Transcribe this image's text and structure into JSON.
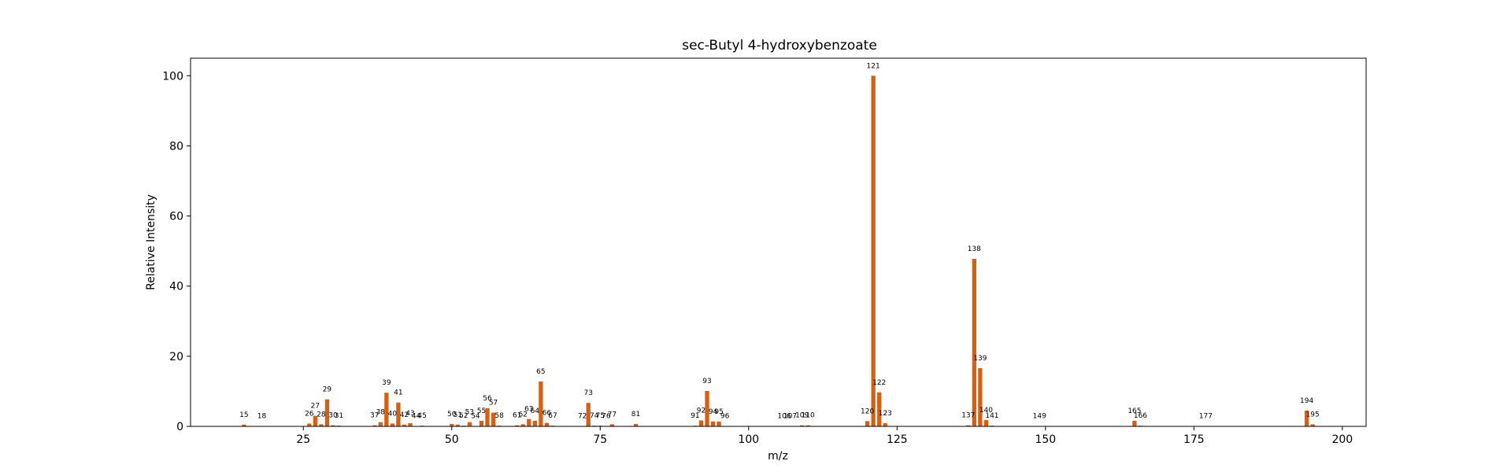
{
  "chart_data": {
    "type": "bar",
    "title": "sec-Butyl 4-hydroxybenzoate",
    "xlabel": "m/z",
    "ylabel": "Relative Intensity",
    "xlim": [
      6,
      204
    ],
    "ylim": [
      0,
      105
    ],
    "xticks": [
      25,
      50,
      75,
      100,
      125,
      150,
      175,
      200
    ],
    "yticks": [
      0,
      20,
      40,
      60,
      80,
      100
    ],
    "grid": false,
    "legend": "none",
    "bar_color": "#d95f0e",
    "peaks": [
      {
        "mz": 15,
        "intensity": 0.5
      },
      {
        "mz": 18,
        "intensity": 0.1
      },
      {
        "mz": 26,
        "intensity": 0.8
      },
      {
        "mz": 27,
        "intensity": 3.0
      },
      {
        "mz": 28,
        "intensity": 0.6
      },
      {
        "mz": 29,
        "intensity": 7.7
      },
      {
        "mz": 30,
        "intensity": 0.3
      },
      {
        "mz": 31,
        "intensity": 0.2
      },
      {
        "mz": 37,
        "intensity": 0.3
      },
      {
        "mz": 38,
        "intensity": 1.2
      },
      {
        "mz": 39,
        "intensity": 9.6
      },
      {
        "mz": 40,
        "intensity": 0.8
      },
      {
        "mz": 41,
        "intensity": 6.8
      },
      {
        "mz": 42,
        "intensity": 0.5
      },
      {
        "mz": 43,
        "intensity": 0.9
      },
      {
        "mz": 44,
        "intensity": 0.1
      },
      {
        "mz": 45,
        "intensity": 0.2
      },
      {
        "mz": 50,
        "intensity": 0.7
      },
      {
        "mz": 51,
        "intensity": 0.5
      },
      {
        "mz": 52,
        "intensity": 0.2
      },
      {
        "mz": 53,
        "intensity": 1.2
      },
      {
        "mz": 54,
        "intensity": 0.1
      },
      {
        "mz": 55,
        "intensity": 1.6
      },
      {
        "mz": 56,
        "intensity": 5.2
      },
      {
        "mz": 57,
        "intensity": 3.9
      },
      {
        "mz": 58,
        "intensity": 0.2
      },
      {
        "mz": 61,
        "intensity": 0.3
      },
      {
        "mz": 62,
        "intensity": 0.6
      },
      {
        "mz": 63,
        "intensity": 2.1
      },
      {
        "mz": 64,
        "intensity": 1.6
      },
      {
        "mz": 65,
        "intensity": 12.8
      },
      {
        "mz": 66,
        "intensity": 1.0
      },
      {
        "mz": 67,
        "intensity": 0.2
      },
      {
        "mz": 72,
        "intensity": 0.1
      },
      {
        "mz": 73,
        "intensity": 6.7
      },
      {
        "mz": 74,
        "intensity": 0.2
      },
      {
        "mz": 75,
        "intensity": 0.2
      },
      {
        "mz": 76,
        "intensity": 0.1
      },
      {
        "mz": 77,
        "intensity": 0.6
      },
      {
        "mz": 81,
        "intensity": 0.7
      },
      {
        "mz": 91,
        "intensity": 0.2
      },
      {
        "mz": 92,
        "intensity": 1.7
      },
      {
        "mz": 93,
        "intensity": 10.1
      },
      {
        "mz": 94,
        "intensity": 1.4
      },
      {
        "mz": 95,
        "intensity": 1.4
      },
      {
        "mz": 96,
        "intensity": 0.1
      },
      {
        "mz": 106,
        "intensity": 0.1
      },
      {
        "mz": 107,
        "intensity": 0.1
      },
      {
        "mz": 109,
        "intensity": 0.3
      },
      {
        "mz": 110,
        "intensity": 0.3
      },
      {
        "mz": 120,
        "intensity": 1.5
      },
      {
        "mz": 121,
        "intensity": 100
      },
      {
        "mz": 122,
        "intensity": 9.7
      },
      {
        "mz": 123,
        "intensity": 0.9
      },
      {
        "mz": 137,
        "intensity": 0.3
      },
      {
        "mz": 138,
        "intensity": 47.8
      },
      {
        "mz": 139,
        "intensity": 16.6
      },
      {
        "mz": 140,
        "intensity": 1.8
      },
      {
        "mz": 141,
        "intensity": 0.2
      },
      {
        "mz": 149,
        "intensity": 0.1
      },
      {
        "mz": 165,
        "intensity": 1.6
      },
      {
        "mz": 166,
        "intensity": 0.2
      },
      {
        "mz": 177,
        "intensity": 0.1
      },
      {
        "mz": 194,
        "intensity": 4.5
      },
      {
        "mz": 195,
        "intensity": 0.6
      }
    ]
  }
}
